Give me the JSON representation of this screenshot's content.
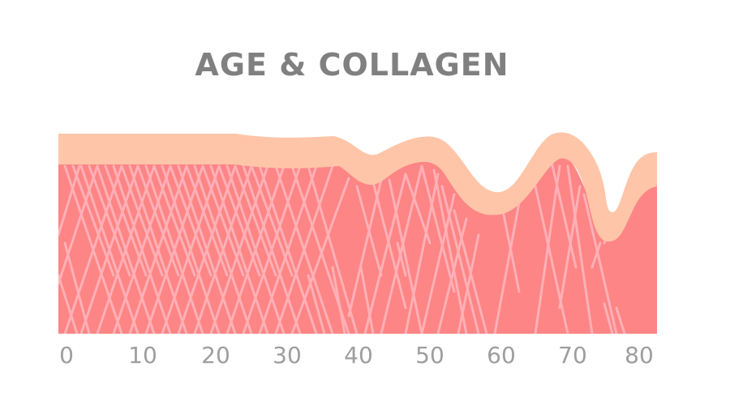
{
  "title": "AGE & COLLAGEN",
  "age_axis": {
    "labels": [
      "0",
      "10",
      "20",
      "30",
      "40",
      "50",
      "60",
      "70",
      "80"
    ]
  },
  "colors": {
    "title": "#808080",
    "dermis": "#fd8585",
    "epidermis": "#ffc5a8",
    "collagen_fibers": "#ffb0b6",
    "axis_labels": "#9e9e9e"
  },
  "icons": [
    "skin-layer-illustration"
  ]
}
